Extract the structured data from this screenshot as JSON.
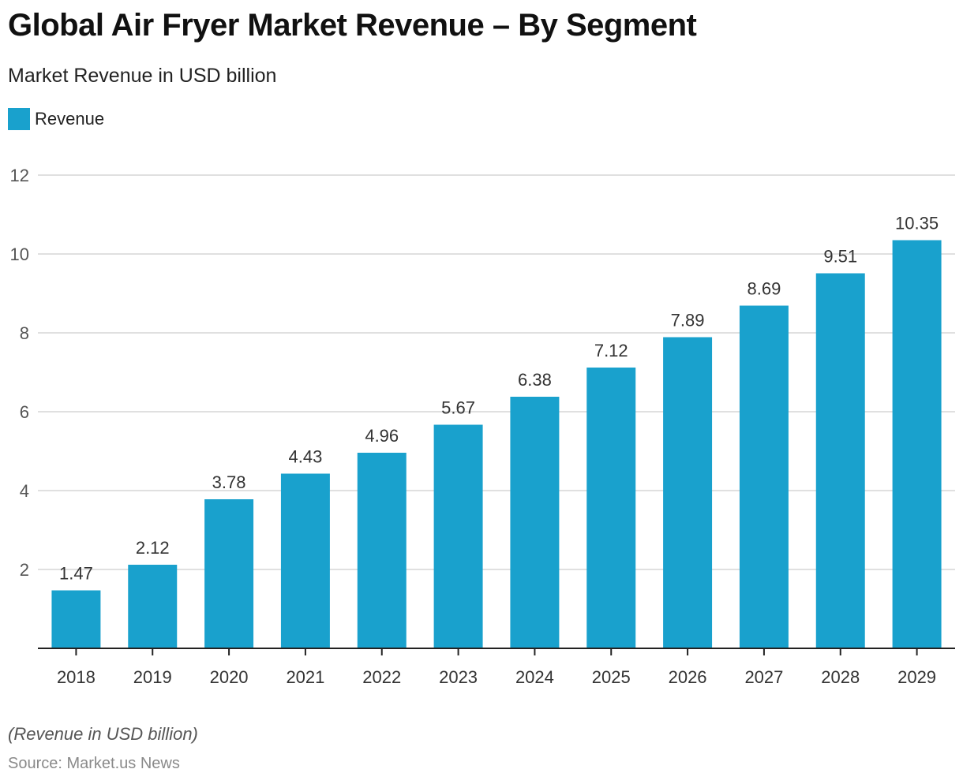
{
  "chart_data": {
    "type": "bar",
    "title": "Global Air Fryer Market Revenue – By Segment",
    "subtitle": "Market Revenue in USD billion",
    "xlabel": "",
    "ylabel": "",
    "categories": [
      "2018",
      "2019",
      "2020",
      "2021",
      "2022",
      "2023",
      "2024",
      "2025",
      "2026",
      "2027",
      "2028",
      "2029"
    ],
    "series": [
      {
        "name": "Revenue",
        "color": "#19a1cd",
        "values": [
          1.47,
          2.12,
          3.78,
          4.43,
          4.96,
          5.67,
          6.38,
          7.12,
          7.89,
          8.69,
          9.51,
          10.35
        ],
        "labels": [
          "1.47",
          "2.12",
          "3.78",
          "4.43",
          "4.96",
          "5.67",
          "6.38",
          "7.12",
          "7.89",
          "8.69",
          "9.51",
          "10.35"
        ]
      }
    ],
    "ylim": [
      0,
      12
    ],
    "yticks": [
      2,
      4,
      6,
      8,
      10,
      12
    ],
    "grid": true,
    "legend_position": "top-left",
    "footnote": "(Revenue in USD billion)",
    "source": "Source: Market.us News"
  },
  "colors": {
    "bar": "#19a1cd",
    "grid": "#d6d6d6",
    "axis": "#222222",
    "tick_label": "#555555",
    "value_label": "#333333"
  }
}
